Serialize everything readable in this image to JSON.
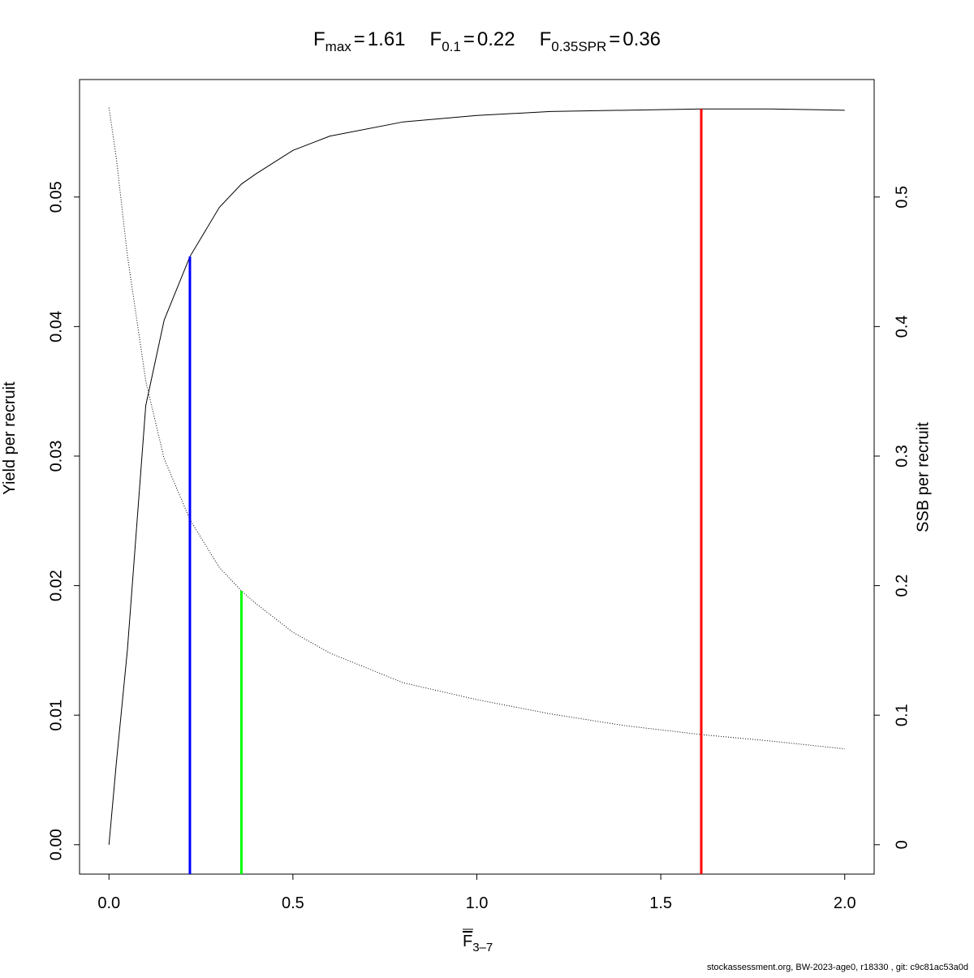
{
  "chart_data": {
    "type": "line",
    "title_parts": [
      {
        "symbol": "F",
        "subscript": "max",
        "relation": "=",
        "value": 1.61,
        "color": "#ff0000",
        "top": 0.0568,
        "axis": "y"
      },
      {
        "symbol": "F",
        "subscript": "0.1",
        "relation": "=",
        "value": 0.22,
        "color": "#0000ff",
        "top": 0.0454,
        "axis": "y"
      },
      {
        "symbol": "F",
        "subscript": "0.35SPR",
        "relation": "=",
        "value": 0.36,
        "color": "#00ff00",
        "top": 0.196,
        "axis": "y2"
      }
    ],
    "x_label": {
      "symbol": "F",
      "subscript": "3–7"
    },
    "y_label": "Yield per recruit",
    "y2_label": "SSB per recruit",
    "footer": "stockassessment.org, BW-2023-age0, r18330 , git: c9c81ac53a0d",
    "x": [
      0,
      0.02,
      0.05,
      0.1,
      0.15,
      0.22,
      0.3,
      0.36,
      0.4,
      0.5,
      0.6,
      0.8,
      1.0,
      1.2,
      1.4,
      1.61,
      1.8,
      2.0
    ],
    "series": [
      {
        "color": "#000000",
        "line_style": "solid",
        "axis": "y",
        "values": [
          0,
          0.0063,
          0.015,
          0.0339,
          0.0405,
          0.0454,
          0.0492,
          0.051,
          0.0518,
          0.0536,
          0.0547,
          0.0558,
          0.0563,
          0.0566,
          0.0567,
          0.0568,
          0.0568,
          0.0567
        ]
      },
      {
        "color": "#000000",
        "line_style": "dotted",
        "axis": "y2",
        "values": [
          0.569,
          0.53,
          0.455,
          0.358,
          0.298,
          0.251,
          0.214,
          0.196,
          0.186,
          0.164,
          0.148,
          0.125,
          0.112,
          0.101,
          0.092,
          0.085,
          0.08,
          0.074
        ]
      }
    ],
    "xlim": [
      -0.08,
      2.08
    ],
    "xticks": [
      {
        "value": 0,
        "label": "0.0"
      },
      {
        "value": 0.5,
        "label": "0.5"
      },
      {
        "value": 1.0,
        "label": "1.0"
      },
      {
        "value": 1.5,
        "label": "1.5"
      },
      {
        "value": 2.0,
        "label": "2.0"
      }
    ],
    "ylim": [
      -0.00227,
      0.05907
    ],
    "yticks": [
      {
        "value": 0,
        "label": "0.00"
      },
      {
        "value": 0.01,
        "label": "0.01"
      },
      {
        "value": 0.02,
        "label": "0.02"
      },
      {
        "value": 0.03,
        "label": "0.03"
      },
      {
        "value": 0.04,
        "label": "0.04"
      },
      {
        "value": 0.05,
        "label": "0.05"
      }
    ],
    "y2lim": [
      -0.0227,
      0.5907
    ],
    "y2ticks": [
      0,
      0.1,
      0.2,
      0.3,
      0.4,
      0.5
    ]
  }
}
